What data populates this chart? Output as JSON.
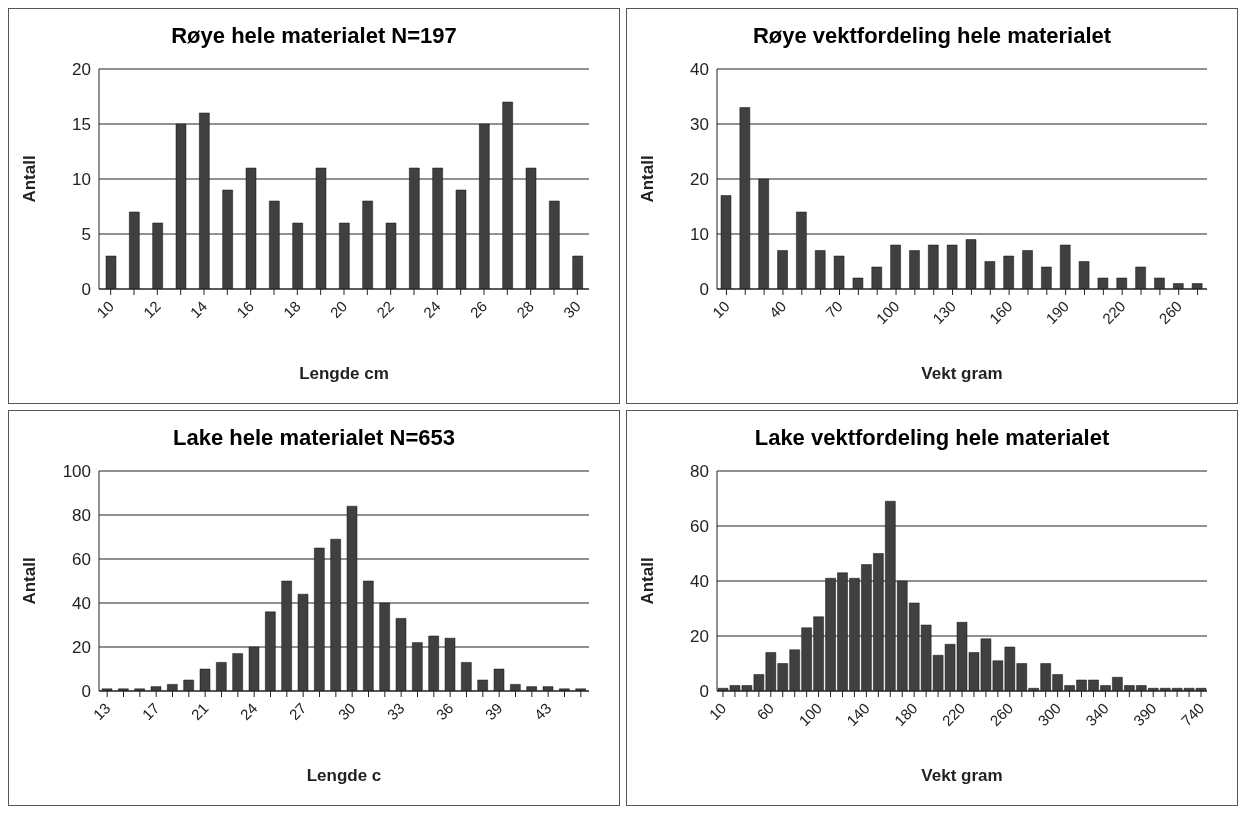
{
  "chart_data": [
    {
      "type": "bar",
      "title": "Røye hele materialet N=197",
      "xlabel": "Lengde cm",
      "ylabel": "Antall",
      "categories": [
        "10",
        null,
        "12",
        null,
        "14",
        null,
        "16",
        null,
        "18",
        null,
        "20",
        null,
        "22",
        null,
        "24",
        null,
        "26",
        null,
        "28",
        null,
        "30"
      ],
      "values": [
        3,
        7,
        6,
        15,
        16,
        9,
        11,
        8,
        6,
        11,
        6,
        8,
        6,
        11,
        11,
        9,
        15,
        17,
        11,
        8,
        3
      ],
      "color": "#404040",
      "ylim": [
        0,
        20
      ],
      "yticks": [
        0,
        5,
        10,
        15,
        20
      ],
      "grid": "y"
    },
    {
      "type": "bar",
      "title": "Røye vektfordeling hele materialet",
      "xlabel": "Vekt gram",
      "ylabel": "Antall",
      "categories": [
        "10",
        null,
        null,
        "40",
        null,
        null,
        "70",
        null,
        null,
        "100",
        null,
        null,
        "130",
        null,
        null,
        "160",
        null,
        null,
        "190",
        null,
        null,
        "220",
        null,
        null,
        "260",
        null
      ],
      "values": [
        17,
        33,
        20,
        7,
        14,
        7,
        6,
        2,
        4,
        8,
        7,
        8,
        8,
        9,
        5,
        6,
        7,
        4,
        8,
        5,
        2,
        2,
        4,
        2,
        1,
        1
      ],
      "color": "#404040",
      "ylim": [
        0,
        40
      ],
      "yticks": [
        0,
        10,
        20,
        30,
        40
      ],
      "grid": "y"
    },
    {
      "type": "bar",
      "title": "Lake hele materialet N=653",
      "xlabel": "Lengde c",
      "ylabel": "Antall",
      "categories": [
        "13",
        null,
        null,
        "17",
        null,
        null,
        "21",
        null,
        null,
        "24",
        null,
        null,
        "27",
        null,
        null,
        "30",
        null,
        null,
        "33",
        null,
        null,
        "36",
        null,
        null,
        "39",
        null,
        null,
        "43",
        null,
        null
      ],
      "values": [
        1,
        1,
        1,
        2,
        3,
        5,
        10,
        13,
        17,
        20,
        36,
        50,
        44,
        65,
        69,
        84,
        50,
        40,
        33,
        22,
        25,
        24,
        13,
        5,
        10,
        3,
        2,
        2,
        1,
        1
      ],
      "color": "#404040",
      "ylim": [
        0,
        100
      ],
      "yticks": [
        0,
        20,
        40,
        60,
        80,
        100
      ],
      "grid": "y"
    },
    {
      "type": "bar",
      "title": "Lake vektfordeling hele materialet",
      "xlabel": "Vekt gram",
      "ylabel": "Antall",
      "categories": [
        "10",
        null,
        null,
        null,
        "60",
        null,
        null,
        null,
        "100",
        null,
        null,
        null,
        "140",
        null,
        null,
        null,
        "180",
        null,
        null,
        null,
        "220",
        null,
        null,
        null,
        "260",
        null,
        null,
        null,
        "300",
        null,
        null,
        null,
        "340",
        null,
        null,
        null,
        "390",
        null,
        null,
        null,
        "740"
      ],
      "values": [
        1,
        2,
        2,
        6,
        14,
        10,
        15,
        23,
        27,
        41,
        43,
        41,
        46,
        50,
        69,
        40,
        32,
        24,
        13,
        17,
        25,
        14,
        19,
        11,
        16,
        10,
        1,
        10,
        6,
        2,
        4,
        4,
        2,
        5,
        2,
        2,
        1,
        1,
        1,
        1,
        1
      ],
      "color": "#404040",
      "ylim": [
        0,
        80
      ],
      "yticks": [
        0,
        20,
        40,
        60,
        80
      ],
      "grid": "y"
    }
  ]
}
